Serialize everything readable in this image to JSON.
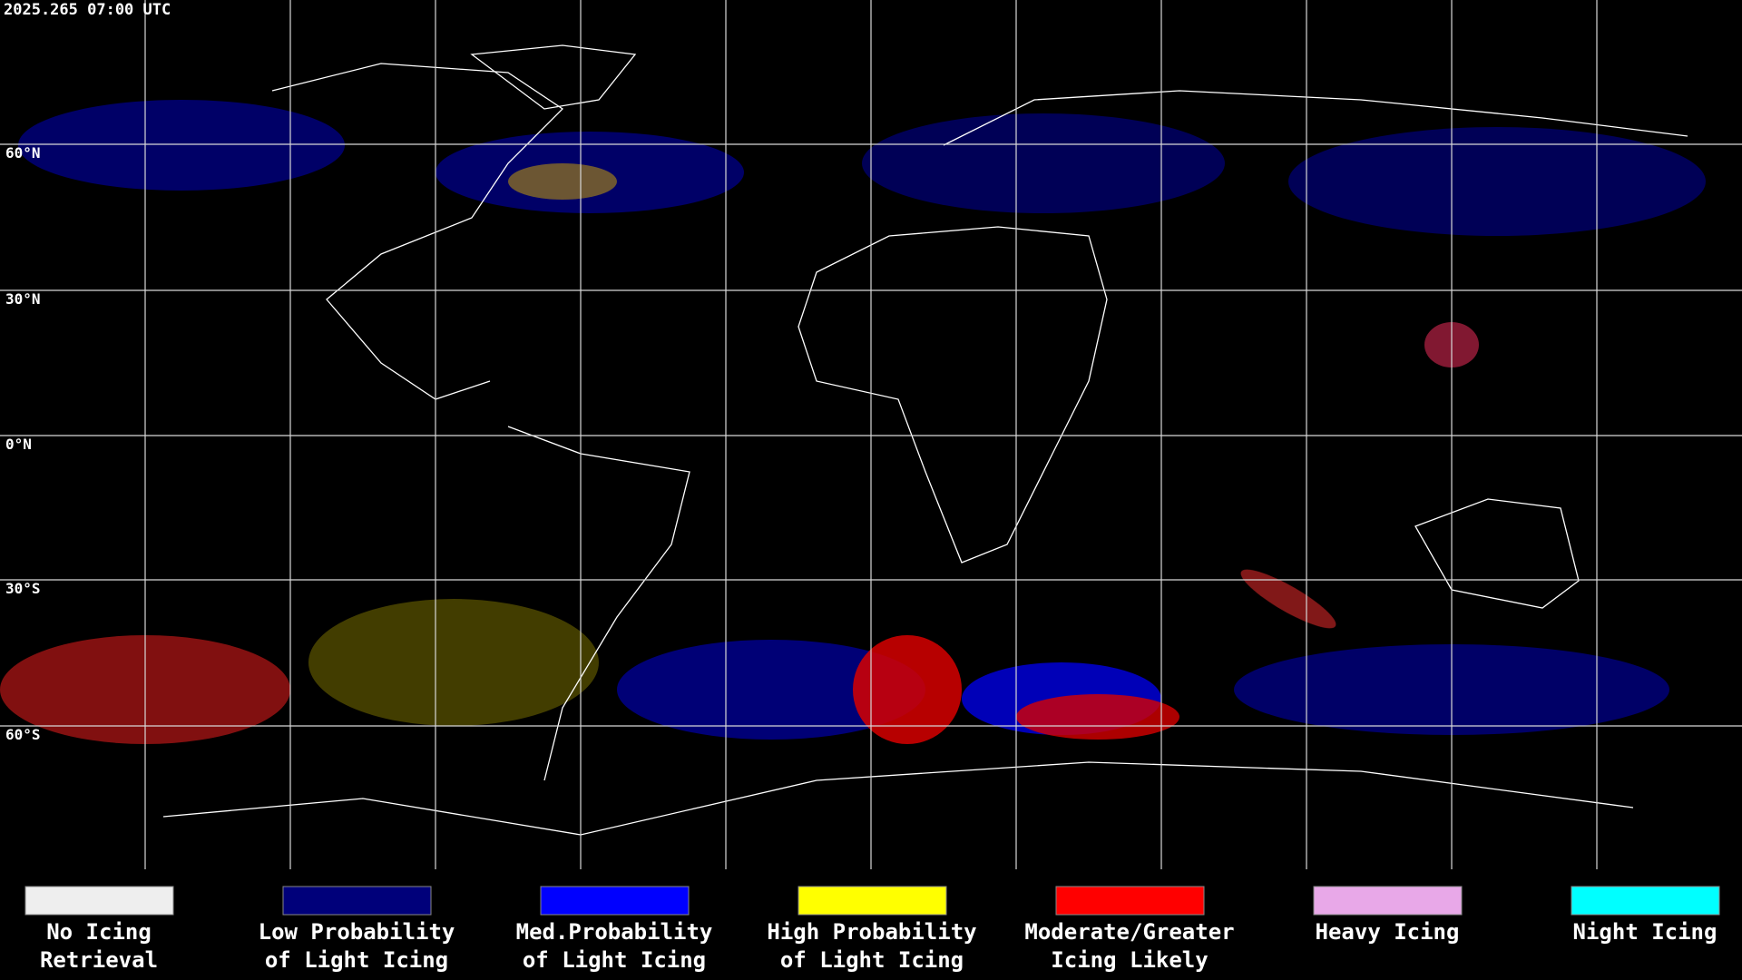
{
  "header": {
    "timestamp": "2025.265 07:00 UTC"
  },
  "map": {
    "latitude_labels": [
      "60°N",
      "30°N",
      "0°N",
      "30°S",
      "60°S"
    ]
  },
  "legend": {
    "items": [
      {
        "lines": [
          "No Icing",
          "Retrieval"
        ],
        "color": "#eeeeee"
      },
      {
        "lines": [
          "Low Probability",
          "of Light Icing"
        ],
        "color": "#00007a"
      },
      {
        "lines": [
          "Med.Probability",
          "of Light Icing"
        ],
        "color": "#0000ff"
      },
      {
        "lines": [
          "High Probability",
          "of Light Icing"
        ],
        "color": "#ffff00"
      },
      {
        "lines": [
          "Moderate/Greater",
          "Icing Likely"
        ],
        "color": "#ff0000"
      },
      {
        "lines": [
          "Heavy Icing"
        ],
        "color": "#e8a8e8"
      },
      {
        "lines": [
          "Night Icing"
        ],
        "color": "#00ffff"
      }
    ]
  }
}
